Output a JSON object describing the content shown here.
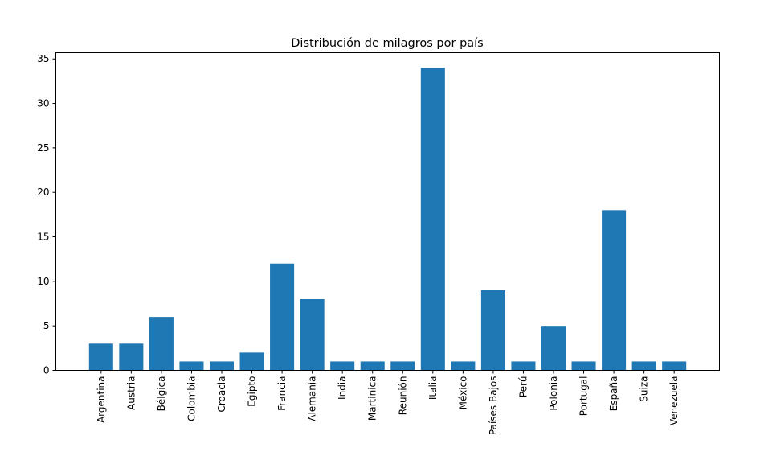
{
  "chart_data": {
    "type": "bar",
    "title": "Distribución de milagros por país",
    "xlabel": "",
    "ylabel": "",
    "categories": [
      "Argentina",
      "Austria",
      "Bélgica",
      "Colombia",
      "Croacia",
      "Egipto",
      "Francia",
      "Alemania",
      "India",
      "Martinica",
      "Reunión",
      "Italia",
      "México",
      "Países Bajos",
      "Perú",
      "Polonia",
      "Portugal",
      "España",
      "Suiza",
      "Venezuela"
    ],
    "values": [
      3,
      3,
      6,
      1,
      1,
      2,
      12,
      8,
      1,
      1,
      1,
      34,
      1,
      9,
      1,
      5,
      1,
      18,
      1,
      1
    ],
    "ylim": [
      0,
      35.7
    ],
    "yticks": [
      0,
      5,
      10,
      15,
      20,
      25,
      30,
      35
    ],
    "grid": false,
    "bar_color": "#1f77b4"
  }
}
